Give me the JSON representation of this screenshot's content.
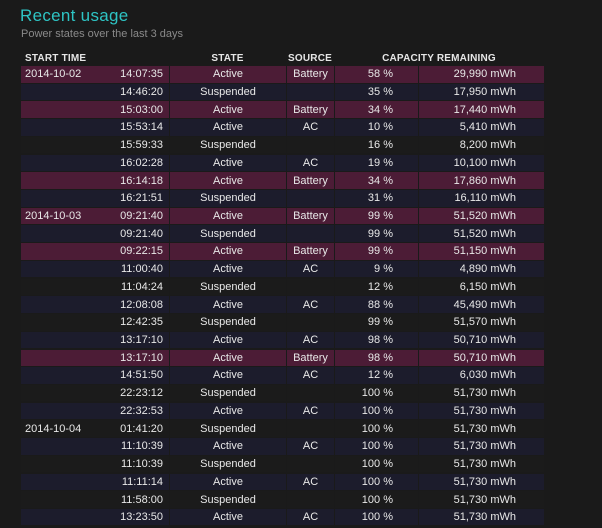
{
  "header": {
    "title": "Recent usage",
    "subtitle": "Power states over the last 3 days"
  },
  "table": {
    "columns": {
      "start_time": "START TIME",
      "state": "STATE",
      "source": "SOURCE",
      "capacity": "CAPACITY REMAINING"
    },
    "rows": [
      {
        "date": "2014-10-02",
        "time": "14:07:35",
        "state": "Active",
        "source": "Battery",
        "percent": "58 %",
        "mwh": "29,990 mWh"
      },
      {
        "date": "",
        "time": "14:46:20",
        "state": "Suspended",
        "source": "",
        "percent": "35 %",
        "mwh": "17,950 mWh"
      },
      {
        "date": "",
        "time": "15:03:00",
        "state": "Active",
        "source": "Battery",
        "percent": "34 %",
        "mwh": "17,440 mWh"
      },
      {
        "date": "",
        "time": "15:53:14",
        "state": "Active",
        "source": "AC",
        "percent": "10 %",
        "mwh": "5,410 mWh"
      },
      {
        "date": "",
        "time": "15:59:33",
        "state": "Suspended",
        "source": "",
        "percent": "16 %",
        "mwh": "8,200 mWh"
      },
      {
        "date": "",
        "time": "16:02:28",
        "state": "Active",
        "source": "AC",
        "percent": "19 %",
        "mwh": "10,100 mWh"
      },
      {
        "date": "",
        "time": "16:14:18",
        "state": "Active",
        "source": "Battery",
        "percent": "34 %",
        "mwh": "17,860 mWh"
      },
      {
        "date": "",
        "time": "16:21:51",
        "state": "Suspended",
        "source": "",
        "percent": "31 %",
        "mwh": "16,110 mWh"
      },
      {
        "date": "2014-10-03",
        "time": "09:21:40",
        "state": "Active",
        "source": "Battery",
        "percent": "99 %",
        "mwh": "51,520 mWh"
      },
      {
        "date": "",
        "time": "09:21:40",
        "state": "Suspended",
        "source": "",
        "percent": "99 %",
        "mwh": "51,520 mWh"
      },
      {
        "date": "",
        "time": "09:22:15",
        "state": "Active",
        "source": "Battery",
        "percent": "99 %",
        "mwh": "51,150 mWh"
      },
      {
        "date": "",
        "time": "11:00:40",
        "state": "Active",
        "source": "AC",
        "percent": "9 %",
        "mwh": "4,890 mWh"
      },
      {
        "date": "",
        "time": "11:04:24",
        "state": "Suspended",
        "source": "",
        "percent": "12 %",
        "mwh": "6,150 mWh"
      },
      {
        "date": "",
        "time": "12:08:08",
        "state": "Active",
        "source": "AC",
        "percent": "88 %",
        "mwh": "45,490 mWh"
      },
      {
        "date": "",
        "time": "12:42:35",
        "state": "Suspended",
        "source": "",
        "percent": "99 %",
        "mwh": "51,570 mWh"
      },
      {
        "date": "",
        "time": "13:17:10",
        "state": "Active",
        "source": "AC",
        "percent": "98 %",
        "mwh": "50,710 mWh"
      },
      {
        "date": "",
        "time": "13:17:10",
        "state": "Active",
        "source": "Battery",
        "percent": "98 %",
        "mwh": "50,710 mWh"
      },
      {
        "date": "",
        "time": "14:51:50",
        "state": "Active",
        "source": "AC",
        "percent": "12 %",
        "mwh": "6,030 mWh"
      },
      {
        "date": "",
        "time": "22:23:12",
        "state": "Suspended",
        "source": "",
        "percent": "100 %",
        "mwh": "51,730 mWh"
      },
      {
        "date": "",
        "time": "22:32:53",
        "state": "Active",
        "source": "AC",
        "percent": "100 %",
        "mwh": "51,730 mWh"
      },
      {
        "date": "2014-10-04",
        "time": "01:41:20",
        "state": "Suspended",
        "source": "",
        "percent": "100 %",
        "mwh": "51,730 mWh"
      },
      {
        "date": "",
        "time": "11:10:39",
        "state": "Active",
        "source": "AC",
        "percent": "100 %",
        "mwh": "51,730 mWh"
      },
      {
        "date": "",
        "time": "11:10:39",
        "state": "Suspended",
        "source": "",
        "percent": "100 %",
        "mwh": "51,730 mWh"
      },
      {
        "date": "",
        "time": "11:11:14",
        "state": "Active",
        "source": "AC",
        "percent": "100 %",
        "mwh": "51,730 mWh"
      },
      {
        "date": "",
        "time": "11:58:00",
        "state": "Suspended",
        "source": "",
        "percent": "100 %",
        "mwh": "51,730 mWh"
      },
      {
        "date": "",
        "time": "13:23:50",
        "state": "Active",
        "source": "AC",
        "percent": "100 %",
        "mwh": "51,730 mWh"
      }
    ]
  },
  "colors": {
    "title": "#2ec4c4",
    "battery_row": "#4c1c36",
    "alt_row": "#1c1c2c",
    "background": "#1a1a1a"
  }
}
